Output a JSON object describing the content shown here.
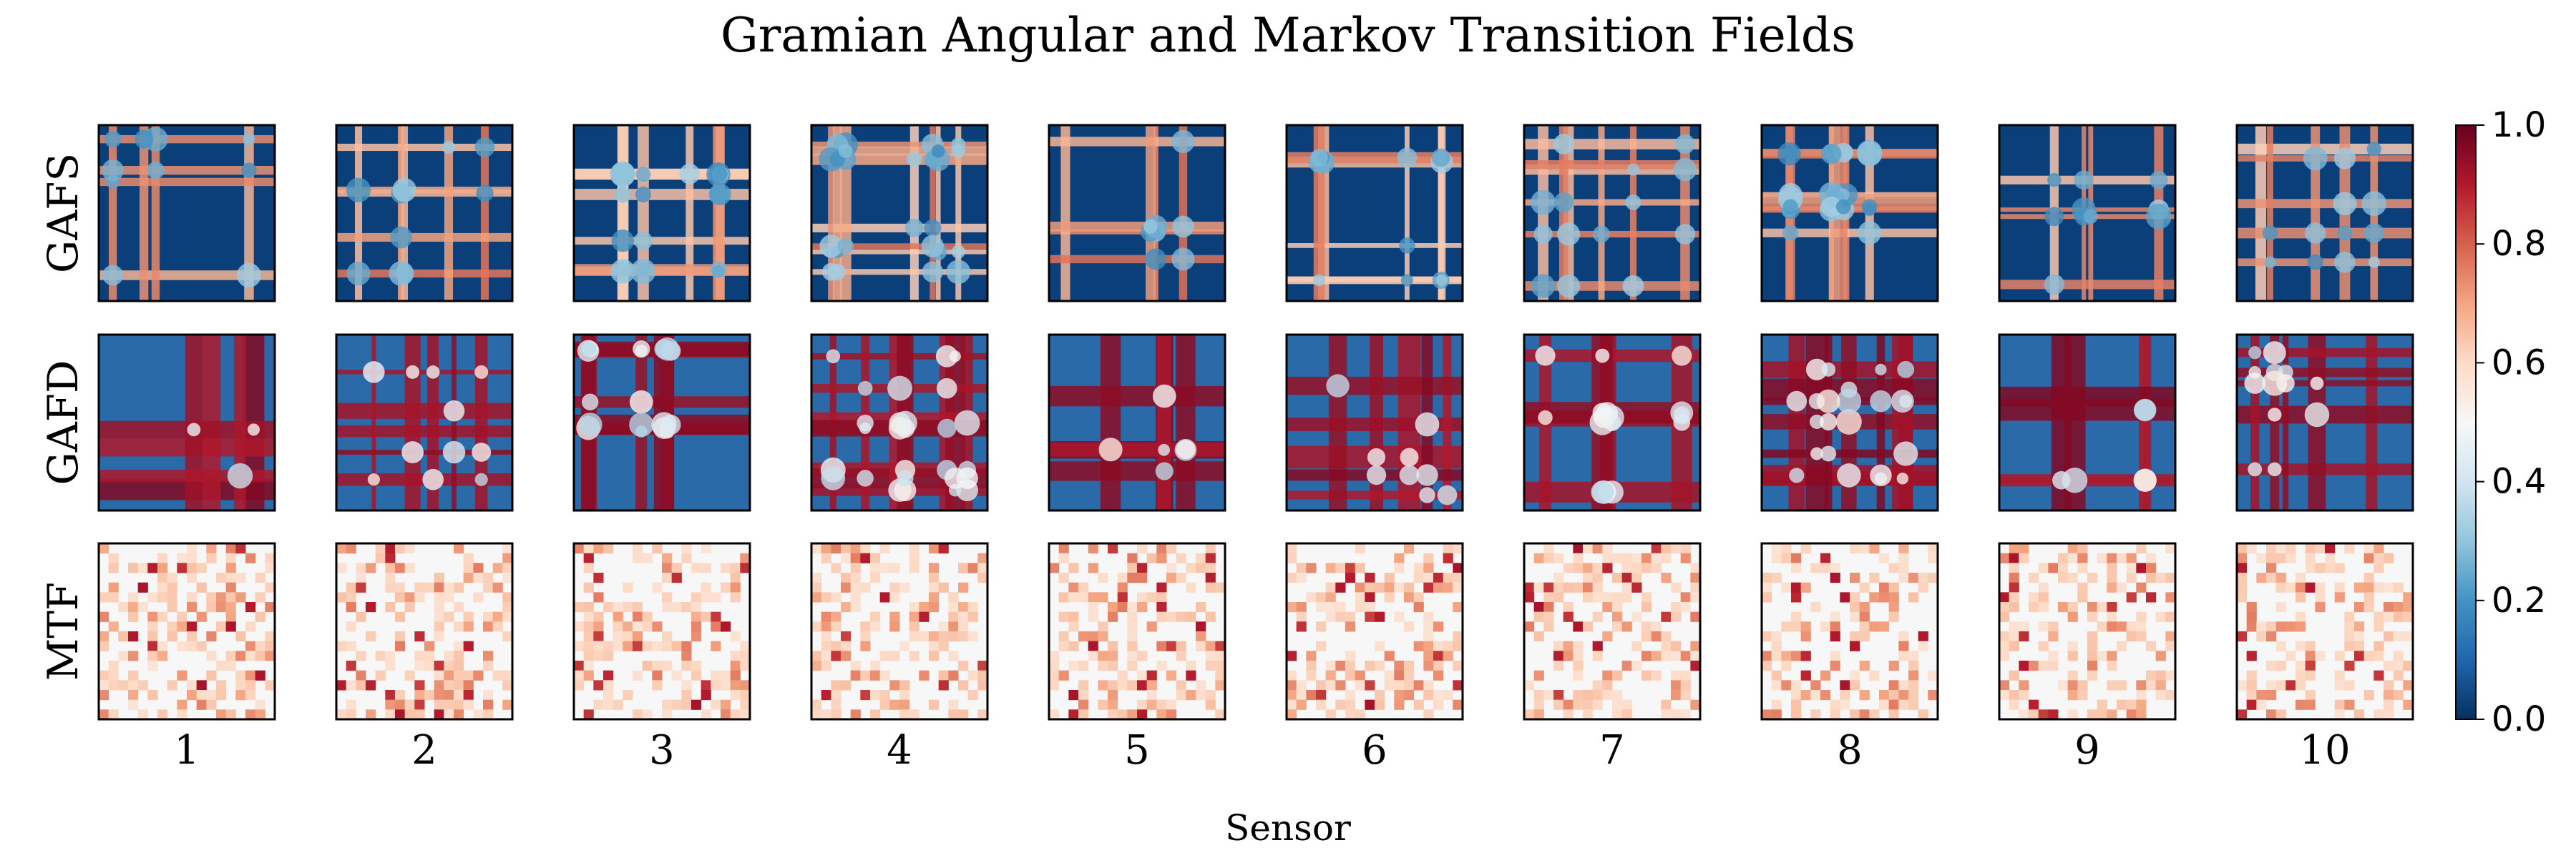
{
  "chart_data": {
    "type": "heatmap",
    "title": "Gramian Angular and Markov Transition Fields",
    "xlabel": "Sensor",
    "rows": [
      "GAFS",
      "GAFD",
      "MTF"
    ],
    "columns": [
      "1",
      "2",
      "3",
      "4",
      "5",
      "6",
      "7",
      "8",
      "9",
      "10"
    ],
    "colormap": "RdBu_r",
    "colorbar": {
      "range": [
        0.0,
        1.0
      ],
      "ticks": [
        "0.0",
        "0.2",
        "0.4",
        "0.6",
        "0.8",
        "1.0"
      ],
      "tick_values": [
        0.0,
        0.2,
        0.4,
        0.6,
        0.8,
        1.0
      ],
      "stops": [
        "#053061",
        "#2166ac",
        "#4393c3",
        "#92c5de",
        "#d1e5f0",
        "#f7f7f7",
        "#fddbc7",
        "#f4a582",
        "#d6604d",
        "#b2182b",
        "#67001f"
      ]
    },
    "panel_style": {
      "GAFS": {
        "palette": "cool",
        "background": "#0a3f7a"
      },
      "GAFD": {
        "palette": "diverging",
        "background": "#2a6aa8"
      },
      "MTF": {
        "palette": "warm",
        "background": "#f7f7f7"
      }
    }
  }
}
